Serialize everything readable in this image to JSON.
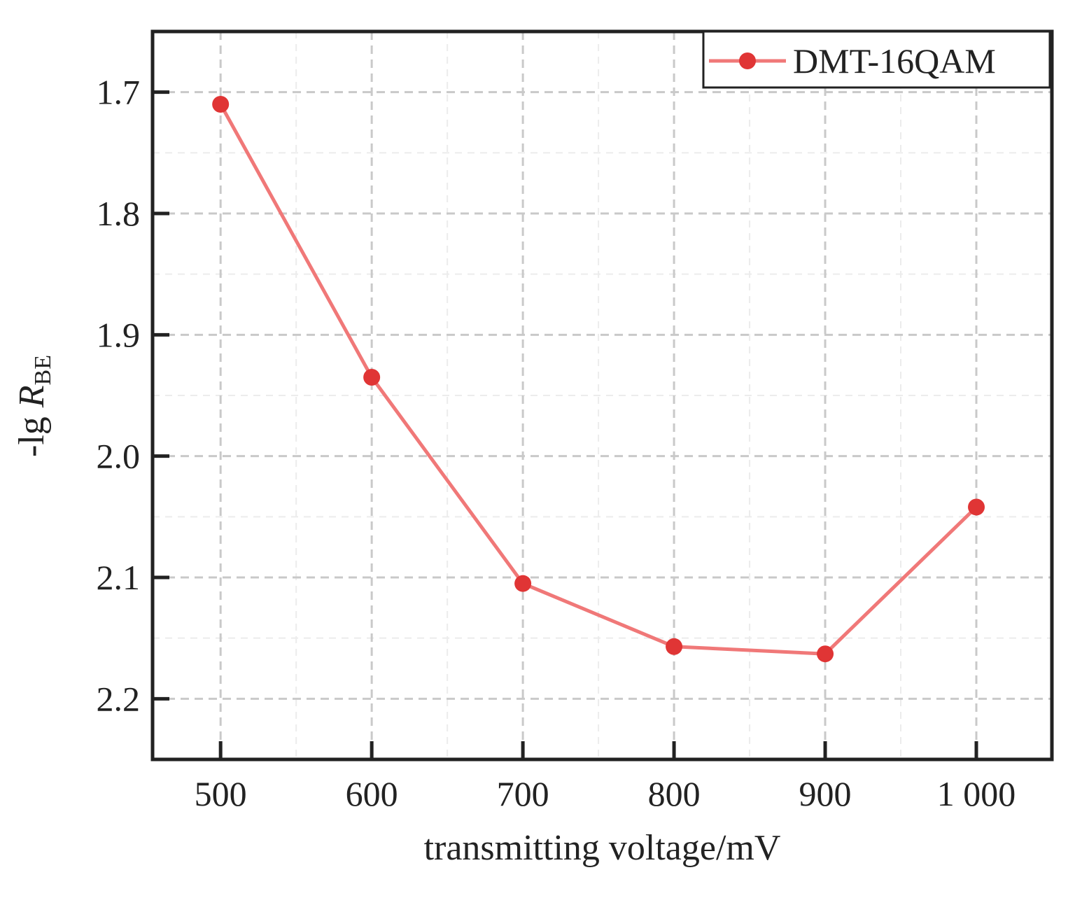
{
  "chart_data": {
    "type": "line",
    "x": [
      500,
      600,
      700,
      800,
      900,
      1000
    ],
    "series": [
      {
        "name": "DMT-16QAM",
        "values": [
          1.71,
          1.935,
          2.105,
          2.157,
          2.163,
          2.042
        ]
      }
    ],
    "xlabel": "transmitting voltage/mV",
    "ylabel_main": "-lg ",
    "ylabel_var": "R",
    "ylabel_sub": "BE",
    "xlim": [
      455,
      1050
    ],
    "ylim": [
      1.65,
      2.25
    ],
    "y_inverted": true,
    "x_ticks": [
      500,
      600,
      700,
      800,
      900,
      1000
    ],
    "x_tick_labels": [
      "500",
      "600",
      "700",
      "800",
      "900",
      "1 000"
    ],
    "y_ticks": [
      1.7,
      1.8,
      1.9,
      2.0,
      2.1,
      2.2
    ],
    "y_tick_labels": [
      "1.7",
      "1.8",
      "1.9",
      "2.0",
      "2.1",
      "2.2"
    ],
    "grid": true,
    "legend_position": "top-right",
    "colors": {
      "line": "#f07878",
      "marker": "#e03535",
      "frame": "#222222"
    }
  }
}
